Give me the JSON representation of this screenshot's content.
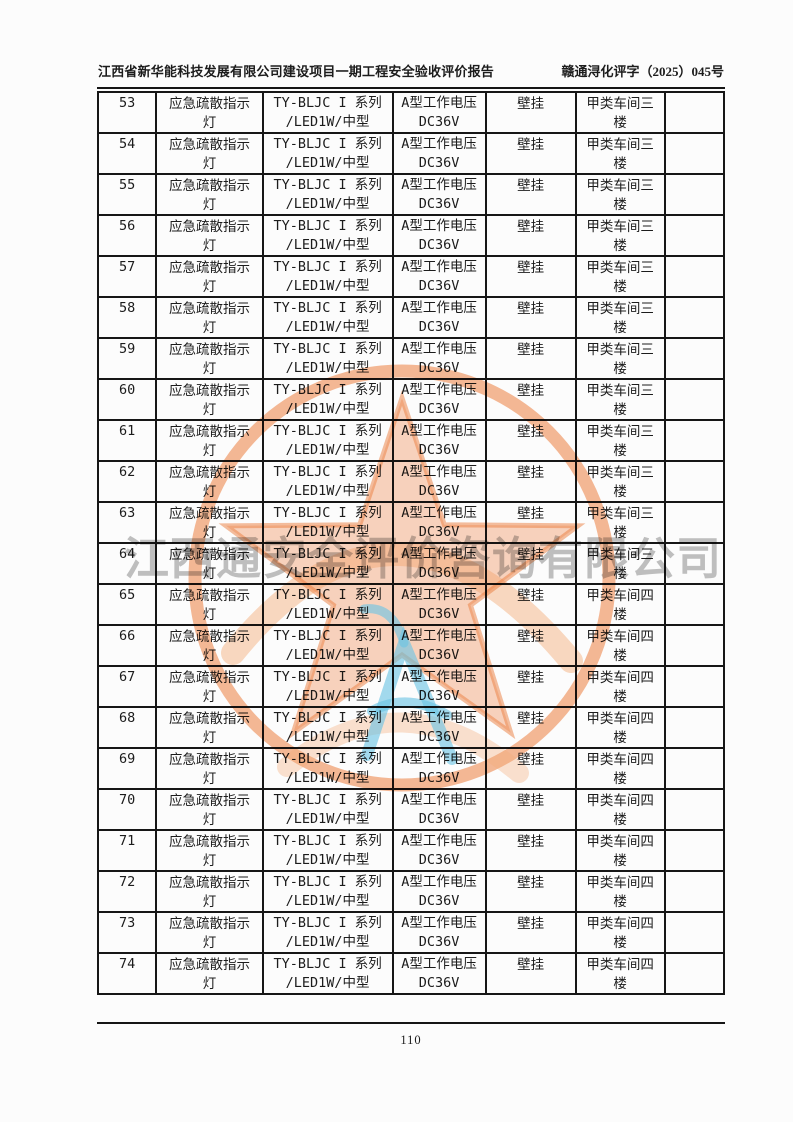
{
  "header": {
    "left_title": "江西省新华能科技发展有限公司建设项目一期工程安全验收评价报告",
    "right_doc_number": "赣通浔化评字（2025）045号"
  },
  "watermark": {
    "company_text": "江西通安全评价咨询有限公司",
    "stamp_color": "#f08c50",
    "logo_color": "#6cc6e6",
    "text_color": "#787878"
  },
  "table": {
    "rows": [
      {
        "no": "53",
        "fixture": [
          "应急疏散指示",
          "灯"
        ],
        "model": [
          "TY-BLJC I 系列",
          "/LED1W/中型"
        ],
        "voltage": [
          "A型工作电压",
          "DC36V"
        ],
        "mount": "壁挂",
        "location": [
          "甲类车间三",
          "楼"
        ],
        "remark": ""
      },
      {
        "no": "54",
        "fixture": [
          "应急疏散指示",
          "灯"
        ],
        "model": [
          "TY-BLJC I 系列",
          "/LED1W/中型"
        ],
        "voltage": [
          "A型工作电压",
          "DC36V"
        ],
        "mount": "壁挂",
        "location": [
          "甲类车间三",
          "楼"
        ],
        "remark": ""
      },
      {
        "no": "55",
        "fixture": [
          "应急疏散指示",
          "灯"
        ],
        "model": [
          "TY-BLJC I 系列",
          "/LED1W/中型"
        ],
        "voltage": [
          "A型工作电压",
          "DC36V"
        ],
        "mount": "壁挂",
        "location": [
          "甲类车间三",
          "楼"
        ],
        "remark": ""
      },
      {
        "no": "56",
        "fixture": [
          "应急疏散指示",
          "灯"
        ],
        "model": [
          "TY-BLJC I 系列",
          "/LED1W/中型"
        ],
        "voltage": [
          "A型工作电压",
          "DC36V"
        ],
        "mount": "壁挂",
        "location": [
          "甲类车间三",
          "楼"
        ],
        "remark": ""
      },
      {
        "no": "57",
        "fixture": [
          "应急疏散指示",
          "灯"
        ],
        "model": [
          "TY-BLJC I 系列",
          "/LED1W/中型"
        ],
        "voltage": [
          "A型工作电压",
          "DC36V"
        ],
        "mount": "壁挂",
        "location": [
          "甲类车间三",
          "楼"
        ],
        "remark": ""
      },
      {
        "no": "58",
        "fixture": [
          "应急疏散指示",
          "灯"
        ],
        "model": [
          "TY-BLJC I 系列",
          "/LED1W/中型"
        ],
        "voltage": [
          "A型工作电压",
          "DC36V"
        ],
        "mount": "壁挂",
        "location": [
          "甲类车间三",
          "楼"
        ],
        "remark": ""
      },
      {
        "no": "59",
        "fixture": [
          "应急疏散指示",
          "灯"
        ],
        "model": [
          "TY-BLJC I 系列",
          "/LED1W/中型"
        ],
        "voltage": [
          "A型工作电压",
          "DC36V"
        ],
        "mount": "壁挂",
        "location": [
          "甲类车间三",
          "楼"
        ],
        "remark": ""
      },
      {
        "no": "60",
        "fixture": [
          "应急疏散指示",
          "灯"
        ],
        "model": [
          "TY-BLJC I 系列",
          "/LED1W/中型"
        ],
        "voltage": [
          "A型工作电压",
          "DC36V"
        ],
        "mount": "壁挂",
        "location": [
          "甲类车间三",
          "楼"
        ],
        "remark": ""
      },
      {
        "no": "61",
        "fixture": [
          "应急疏散指示",
          "灯"
        ],
        "model": [
          "TY-BLJC I 系列",
          "/LED1W/中型"
        ],
        "voltage": [
          "A型工作电压",
          "DC36V"
        ],
        "mount": "壁挂",
        "location": [
          "甲类车间三",
          "楼"
        ],
        "remark": ""
      },
      {
        "no": "62",
        "fixture": [
          "应急疏散指示",
          "灯"
        ],
        "model": [
          "TY-BLJC I 系列",
          "/LED1W/中型"
        ],
        "voltage": [
          "A型工作电压",
          "DC36V"
        ],
        "mount": "壁挂",
        "location": [
          "甲类车间三",
          "楼"
        ],
        "remark": ""
      },
      {
        "no": "63",
        "fixture": [
          "应急疏散指示",
          "灯"
        ],
        "model": [
          "TY-BLJC I 系列",
          "/LED1W/中型"
        ],
        "voltage": [
          "A型工作电压",
          "DC36V"
        ],
        "mount": "壁挂",
        "location": [
          "甲类车间三",
          "楼"
        ],
        "remark": ""
      },
      {
        "no": "64",
        "fixture": [
          "应急疏散指示",
          "灯"
        ],
        "model": [
          "TY-BLJC I 系列",
          "/LED1W/中型"
        ],
        "voltage": [
          "A型工作电压",
          "DC36V"
        ],
        "mount": "壁挂",
        "location": [
          "甲类车间三",
          "楼"
        ],
        "remark": ""
      },
      {
        "no": "65",
        "fixture": [
          "应急疏散指示",
          "灯"
        ],
        "model": [
          "TY-BLJC I 系列",
          "/LED1W/中型"
        ],
        "voltage": [
          "A型工作电压",
          "DC36V"
        ],
        "mount": "壁挂",
        "location": [
          "甲类车间四",
          "楼"
        ],
        "remark": ""
      },
      {
        "no": "66",
        "fixture": [
          "应急疏散指示",
          "灯"
        ],
        "model": [
          "TY-BLJC I 系列",
          "/LED1W/中型"
        ],
        "voltage": [
          "A型工作电压",
          "DC36V"
        ],
        "mount": "壁挂",
        "location": [
          "甲类车间四",
          "楼"
        ],
        "remark": ""
      },
      {
        "no": "67",
        "fixture": [
          "应急疏散指示",
          "灯"
        ],
        "model": [
          "TY-BLJC I 系列",
          "/LED1W/中型"
        ],
        "voltage": [
          "A型工作电压",
          "DC36V"
        ],
        "mount": "壁挂",
        "location": [
          "甲类车间四",
          "楼"
        ],
        "remark": ""
      },
      {
        "no": "68",
        "fixture": [
          "应急疏散指示",
          "灯"
        ],
        "model": [
          "TY-BLJC I 系列",
          "/LED1W/中型"
        ],
        "voltage": [
          "A型工作电压",
          "DC36V"
        ],
        "mount": "壁挂",
        "location": [
          "甲类车间四",
          "楼"
        ],
        "remark": ""
      },
      {
        "no": "69",
        "fixture": [
          "应急疏散指示",
          "灯"
        ],
        "model": [
          "TY-BLJC I 系列",
          "/LED1W/中型"
        ],
        "voltage": [
          "A型工作电压",
          "DC36V"
        ],
        "mount": "壁挂",
        "location": [
          "甲类车间四",
          "楼"
        ],
        "remark": ""
      },
      {
        "no": "70",
        "fixture": [
          "应急疏散指示",
          "灯"
        ],
        "model": [
          "TY-BLJC I 系列",
          "/LED1W/中型"
        ],
        "voltage": [
          "A型工作电压",
          "DC36V"
        ],
        "mount": "壁挂",
        "location": [
          "甲类车间四",
          "楼"
        ],
        "remark": ""
      },
      {
        "no": "71",
        "fixture": [
          "应急疏散指示",
          "灯"
        ],
        "model": [
          "TY-BLJC I 系列",
          "/LED1W/中型"
        ],
        "voltage": [
          "A型工作电压",
          "DC36V"
        ],
        "mount": "壁挂",
        "location": [
          "甲类车间四",
          "楼"
        ],
        "remark": ""
      },
      {
        "no": "72",
        "fixture": [
          "应急疏散指示",
          "灯"
        ],
        "model": [
          "TY-BLJC I 系列",
          "/LED1W/中型"
        ],
        "voltage": [
          "A型工作电压",
          "DC36V"
        ],
        "mount": "壁挂",
        "location": [
          "甲类车间四",
          "楼"
        ],
        "remark": ""
      },
      {
        "no": "73",
        "fixture": [
          "应急疏散指示",
          "灯"
        ],
        "model": [
          "TY-BLJC I 系列",
          "/LED1W/中型"
        ],
        "voltage": [
          "A型工作电压",
          "DC36V"
        ],
        "mount": "壁挂",
        "location": [
          "甲类车间四",
          "楼"
        ],
        "remark": ""
      },
      {
        "no": "74",
        "fixture": [
          "应急疏散指示",
          "灯"
        ],
        "model": [
          "TY-BLJC I 系列",
          "/LED1W/中型"
        ],
        "voltage": [
          "A型工作电压",
          "DC36V"
        ],
        "mount": "壁挂",
        "location": [
          "甲类车间四",
          "楼"
        ],
        "remark": ""
      }
    ]
  },
  "footer": {
    "page_number": "110"
  }
}
